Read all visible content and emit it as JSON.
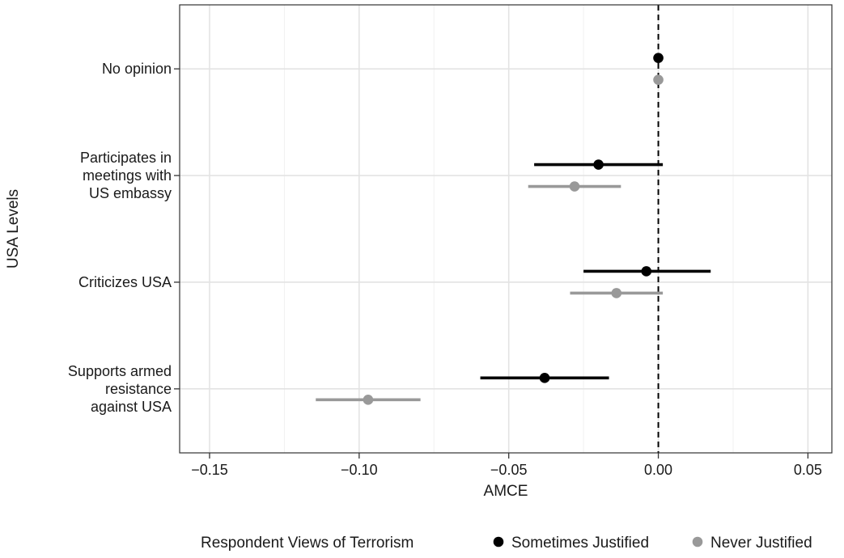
{
  "chart_data": {
    "type": "scatter",
    "subtype": "dot-and-whisker",
    "xlabel": "AMCE",
    "ylabel": "USA Levels",
    "xlim": [
      -0.16,
      0.058
    ],
    "x_ticks": [
      -0.15,
      -0.1,
      -0.05,
      0.0,
      0.05
    ],
    "x_tick_labels": [
      "−0.15",
      "−0.10",
      "−0.05",
      "0.00",
      "0.05"
    ],
    "reference_line": {
      "x": 0.0,
      "style": "dashed",
      "color": "#000000"
    },
    "grid": true,
    "categories": [
      {
        "label_lines": [
          "No opinion"
        ]
      },
      {
        "label_lines": [
          "Participates in",
          "meetings with",
          "US embassy"
        ]
      },
      {
        "label_lines": [
          "Criticizes USA"
        ]
      },
      {
        "label_lines": [
          "Supports armed",
          "resistance",
          "against USA"
        ]
      }
    ],
    "legend": {
      "title": "Respondent Views of Terrorism",
      "placement": "bottom"
    },
    "series": [
      {
        "name": "Sometimes Justified",
        "color": "#000000",
        "points": [
          {
            "estimate": 0.0,
            "low": null,
            "high": null
          },
          {
            "estimate": -0.02,
            "low": -0.0415,
            "high": 0.0015
          },
          {
            "estimate": -0.004,
            "low": -0.025,
            "high": 0.0175
          },
          {
            "estimate": -0.038,
            "low": -0.0595,
            "high": -0.0165
          }
        ]
      },
      {
        "name": "Never Justified",
        "color": "#999999",
        "points": [
          {
            "estimate": 0.0,
            "low": null,
            "high": null
          },
          {
            "estimate": -0.028,
            "low": -0.0435,
            "high": -0.0125
          },
          {
            "estimate": -0.014,
            "low": -0.0295,
            "high": 0.0015
          },
          {
            "estimate": -0.097,
            "low": -0.1145,
            "high": -0.0795
          }
        ]
      }
    ]
  }
}
